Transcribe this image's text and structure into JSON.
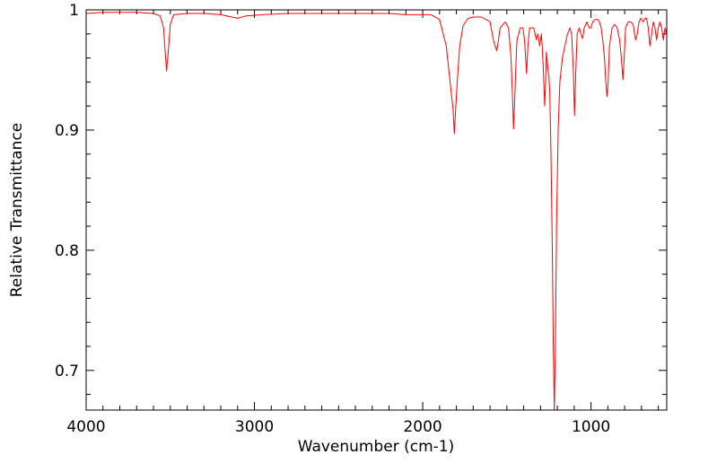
{
  "chart_data": {
    "type": "line",
    "title": "",
    "xlabel": "Wavenumber (cm-1)",
    "ylabel": "Relative Transmittance",
    "xlim": [
      4000,
      550
    ],
    "ylim": [
      0.667,
      1.0
    ],
    "x_reversed": true,
    "grid": false,
    "legend": "none",
    "line_color": "#ff0000",
    "x_ticks": [
      4000,
      3000,
      2000,
      1000
    ],
    "x_tick_labels": [
      "4000",
      "3000",
      "2000",
      "1000"
    ],
    "y_ticks": [
      0.7,
      0.8,
      0.9,
      1.0
    ],
    "y_tick_labels": [
      "0.7",
      "0.8",
      "0.9",
      "1"
    ],
    "series": [
      {
        "points": [
          [
            4000,
            0.997
          ],
          [
            3900,
            0.998
          ],
          [
            3800,
            0.998
          ],
          [
            3700,
            0.998
          ],
          [
            3600,
            0.997
          ],
          [
            3560,
            0.995
          ],
          [
            3540,
            0.985
          ],
          [
            3530,
            0.965
          ],
          [
            3522,
            0.949
          ],
          [
            3512,
            0.965
          ],
          [
            3500,
            0.988
          ],
          [
            3480,
            0.996
          ],
          [
            3400,
            0.997
          ],
          [
            3300,
            0.997
          ],
          [
            3200,
            0.996
          ],
          [
            3100,
            0.993
          ],
          [
            3050,
            0.995
          ],
          [
            2950,
            0.996
          ],
          [
            2800,
            0.997
          ],
          [
            2600,
            0.997
          ],
          [
            2400,
            0.997
          ],
          [
            2200,
            0.997
          ],
          [
            2100,
            0.996
          ],
          [
            2000,
            0.996
          ],
          [
            1950,
            0.996
          ],
          [
            1900,
            0.992
          ],
          [
            1860,
            0.97
          ],
          [
            1830,
            0.93
          ],
          [
            1820,
            0.918
          ],
          [
            1812,
            0.897
          ],
          [
            1805,
            0.915
          ],
          [
            1795,
            0.94
          ],
          [
            1780,
            0.97
          ],
          [
            1760,
            0.987
          ],
          [
            1730,
            0.993
          ],
          [
            1700,
            0.994
          ],
          [
            1650,
            0.994
          ],
          [
            1600,
            0.99
          ],
          [
            1580,
            0.975
          ],
          [
            1570,
            0.97
          ],
          [
            1560,
            0.966
          ],
          [
            1550,
            0.975
          ],
          [
            1540,
            0.985
          ],
          [
            1510,
            0.99
          ],
          [
            1490,
            0.985
          ],
          [
            1475,
            0.96
          ],
          [
            1467,
            0.93
          ],
          [
            1460,
            0.901
          ],
          [
            1452,
            0.93
          ],
          [
            1445,
            0.96
          ],
          [
            1440,
            0.975
          ],
          [
            1420,
            0.985
          ],
          [
            1405,
            0.985
          ],
          [
            1395,
            0.975
          ],
          [
            1383,
            0.947
          ],
          [
            1375,
            0.97
          ],
          [
            1365,
            0.985
          ],
          [
            1340,
            0.985
          ],
          [
            1325,
            0.975
          ],
          [
            1315,
            0.98
          ],
          [
            1305,
            0.97
          ],
          [
            1295,
            0.98
          ],
          [
            1290,
            0.97
          ],
          [
            1283,
            0.95
          ],
          [
            1275,
            0.92
          ],
          [
            1270,
            0.94
          ],
          [
            1265,
            0.965
          ],
          [
            1255,
            0.95
          ],
          [
            1250,
            0.945
          ],
          [
            1245,
            0.93
          ],
          [
            1238,
            0.88
          ],
          [
            1230,
            0.8
          ],
          [
            1224,
            0.72
          ],
          [
            1218,
            0.667
          ],
          [
            1212,
            0.72
          ],
          [
            1205,
            0.82
          ],
          [
            1195,
            0.9
          ],
          [
            1185,
            0.94
          ],
          [
            1170,
            0.96
          ],
          [
            1155,
            0.97
          ],
          [
            1140,
            0.98
          ],
          [
            1125,
            0.985
          ],
          [
            1115,
            0.98
          ],
          [
            1105,
            0.95
          ],
          [
            1098,
            0.912
          ],
          [
            1090,
            0.95
          ],
          [
            1082,
            0.98
          ],
          [
            1070,
            0.985
          ],
          [
            1060,
            0.98
          ],
          [
            1050,
            0.976
          ],
          [
            1040,
            0.985
          ],
          [
            1025,
            0.99
          ],
          [
            1010,
            0.985
          ],
          [
            1000,
            0.985
          ],
          [
            990,
            0.99
          ],
          [
            975,
            0.992
          ],
          [
            960,
            0.992
          ],
          [
            950,
            0.99
          ],
          [
            940,
            0.985
          ],
          [
            930,
            0.975
          ],
          [
            920,
            0.96
          ],
          [
            912,
            0.94
          ],
          [
            905,
            0.928
          ],
          [
            898,
            0.94
          ],
          [
            890,
            0.97
          ],
          [
            875,
            0.985
          ],
          [
            860,
            0.988
          ],
          [
            845,
            0.985
          ],
          [
            830,
            0.975
          ],
          [
            820,
            0.96
          ],
          [
            810,
            0.942
          ],
          [
            803,
            0.96
          ],
          [
            795,
            0.985
          ],
          [
            780,
            0.99
          ],
          [
            765,
            0.99
          ],
          [
            750,
            0.988
          ],
          [
            735,
            0.975
          ],
          [
            725,
            0.98
          ],
          [
            715,
            0.99
          ],
          [
            705,
            0.993
          ],
          [
            690,
            0.99
          ],
          [
            680,
            0.993
          ],
          [
            670,
            0.993
          ],
          [
            660,
            0.985
          ],
          [
            650,
            0.97
          ],
          [
            645,
            0.975
          ],
          [
            630,
            0.99
          ],
          [
            620,
            0.985
          ],
          [
            610,
            0.975
          ],
          [
            600,
            0.985
          ],
          [
            590,
            0.99
          ],
          [
            580,
            0.985
          ],
          [
            570,
            0.975
          ],
          [
            560,
            0.985
          ],
          [
            550,
            0.98
          ]
        ]
      }
    ]
  }
}
